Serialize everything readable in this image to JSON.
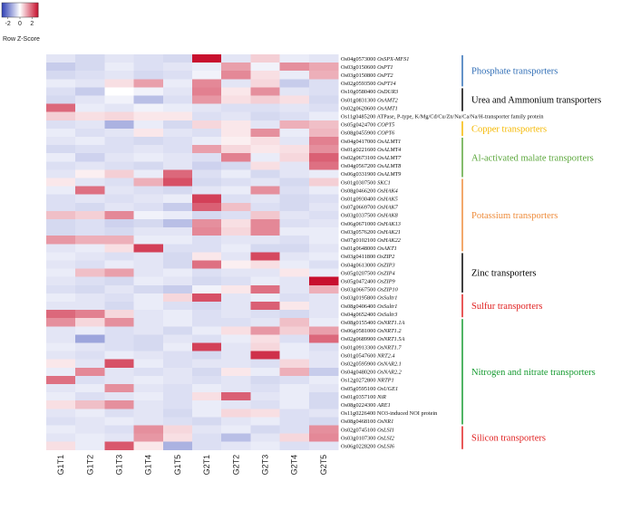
{
  "chart_data": {
    "type": "heatmap",
    "color_key": {
      "title": "Row Z-Score",
      "ticks": [
        "-2",
        "0",
        "2"
      ],
      "low_color": "#2e3fb5",
      "mid_color": "#ffffff",
      "high_color": "#c8102e",
      "range": [
        -3,
        3
      ]
    },
    "columns": [
      "G1T1",
      "G1T2",
      "G1T3",
      "G1T4",
      "G1T5",
      "G2T1",
      "G2T2",
      "G2T3",
      "G2T4",
      "G2T5"
    ],
    "rows": [
      {
        "id": "Os04g0573000",
        "gene": "OsSPX-MFS1",
        "values": [
          -0.4,
          -0.6,
          -0.4,
          -0.5,
          -0.6,
          3.0,
          -0.4,
          0.6,
          -0.3,
          -0.4
        ]
      },
      {
        "id": "Os03g0150600",
        "gene": "OsPT1",
        "values": [
          -0.8,
          -0.6,
          -0.3,
          -0.5,
          -0.4,
          -0.3,
          1.2,
          -0.2,
          1.4,
          1.1
        ]
      },
      {
        "id": "Os03g0150800",
        "gene": "OsPT2",
        "values": [
          -0.6,
          -0.5,
          -0.4,
          -0.6,
          -0.5,
          -0.2,
          1.5,
          0.4,
          -0.3,
          1.0
        ]
      },
      {
        "id": "Os02g0593500",
        "gene": "OsPT14",
        "values": [
          -0.3,
          -0.4,
          0.4,
          1.2,
          -0.3,
          1.5,
          -0.4,
          0.5,
          -0.8,
          -0.5
        ]
      },
      {
        "id": "Os10g0580400",
        "gene": "OsDUR3",
        "values": [
          -0.5,
          -0.8,
          0.0,
          -0.2,
          -0.4,
          1.6,
          0.3,
          1.4,
          -0.4,
          -0.5
        ]
      },
      {
        "id": "Os01g0831300",
        "gene": "OsAMT2",
        "values": [
          -0.6,
          -0.4,
          -0.2,
          -1.0,
          -0.5,
          1.3,
          0.4,
          0.6,
          0.4,
          -0.6
        ]
      },
      {
        "id": "Os02g0620600",
        "gene": "OsAMT1",
        "values": [
          1.9,
          -0.3,
          -0.4,
          -0.2,
          -0.3,
          -0.4,
          -0.5,
          -0.5,
          -0.4,
          -0.5
        ]
      },
      {
        "id": "Os11g0485200",
        "gene": "",
        "description": "ATPase, P-type, K/Mg/Cd/Cu/Zn/Na/Ca/Na/H-transporter family protein",
        "values": [
          0.6,
          0.4,
          0.5,
          0.3,
          0.3,
          -0.5,
          -0.4,
          -0.6,
          -0.5,
          -0.3
        ]
      },
      {
        "id": "Os05g0424700",
        "gene": "COPT5",
        "values": [
          -0.5,
          -0.4,
          -1.2,
          -0.3,
          -0.6,
          0.5,
          0.3,
          -0.4,
          1.0,
          0.8
        ]
      },
      {
        "id": "Os08g0455900",
        "gene": "COPT6",
        "values": [
          -0.3,
          -0.5,
          -0.4,
          0.3,
          -0.4,
          -0.5,
          0.3,
          1.4,
          -0.3,
          0.9
        ]
      },
      {
        "id": "Os04g0417000",
        "gene": "OsALMT1",
        "values": [
          -0.4,
          -0.3,
          -0.5,
          -0.6,
          -0.5,
          -0.3,
          0.2,
          0.4,
          -0.4,
          1.6
        ]
      },
      {
        "id": "Os01g0221600",
        "gene": "OsALMT4",
        "values": [
          -0.6,
          -0.5,
          -0.5,
          -0.4,
          -0.5,
          1.2,
          0.5,
          0.3,
          0.4,
          1.4
        ]
      },
      {
        "id": "Os02g0673100",
        "gene": "OsALMT7",
        "values": [
          -0.3,
          -0.7,
          -0.4,
          -0.3,
          -0.4,
          -0.5,
          1.6,
          -0.3,
          0.5,
          2.0
        ]
      },
      {
        "id": "Os04g0567200",
        "gene": "OsALMT8",
        "values": [
          -0.5,
          -0.4,
          -0.5,
          -0.6,
          -0.4,
          -0.7,
          -0.6,
          0.4,
          -0.4,
          1.8
        ]
      },
      {
        "id": "Os06g0331900",
        "gene": "OsALMT9",
        "values": [
          -0.4,
          0.2,
          0.6,
          -0.3,
          1.9,
          -0.5,
          -0.3,
          -0.6,
          -0.4,
          -0.3
        ]
      },
      {
        "id": "Os01g0307500",
        "gene": "SKC1",
        "values": [
          0.3,
          -0.4,
          -0.5,
          1.0,
          2.2,
          -0.6,
          -0.5,
          -0.4,
          -0.6,
          0.6
        ]
      },
      {
        "id": "Os08g0466200",
        "gene": "OsHAK4",
        "values": [
          -0.3,
          1.8,
          -0.4,
          -0.5,
          -0.6,
          -0.4,
          -0.3,
          1.4,
          -0.5,
          -0.3
        ]
      },
      {
        "id": "Os01g0930400",
        "gene": "OsHAK5",
        "values": [
          -0.5,
          -0.4,
          -0.5,
          -0.4,
          -0.3,
          2.4,
          -0.5,
          -0.4,
          -0.6,
          -0.5
        ]
      },
      {
        "id": "Os07g0669700",
        "gene": "OsHAK7",
        "values": [
          -0.5,
          -0.6,
          -0.4,
          -0.5,
          -0.8,
          2.0,
          0.8,
          -0.5,
          -0.6,
          -0.4
        ]
      },
      {
        "id": "Os03g0337500",
        "gene": "OsHAK8",
        "values": [
          0.8,
          0.6,
          1.5,
          -0.2,
          -0.3,
          -0.6,
          -0.5,
          0.7,
          -0.4,
          -0.5
        ]
      },
      {
        "id": "Os06g0671000",
        "gene": "OsHAK13",
        "values": [
          -0.6,
          -0.5,
          -0.7,
          -0.6,
          -1.0,
          1.4,
          0.4,
          1.5,
          -0.5,
          -0.4
        ]
      },
      {
        "id": "Os03g0576200",
        "gene": "OsHAK21",
        "values": [
          -0.6,
          -0.5,
          -0.6,
          -0.4,
          -0.4,
          1.5,
          0.5,
          1.5,
          -0.3,
          -0.3
        ]
      },
      {
        "id": "Os07g0102100",
        "gene": "OsHAK22",
        "values": [
          1.3,
          1.0,
          1.0,
          -0.3,
          -0.3,
          -0.5,
          -0.4,
          -0.4,
          -0.5,
          -0.3
        ]
      },
      {
        "id": "Os01g0648000",
        "gene": "OsAKT1",
        "values": [
          -0.4,
          -0.3,
          0.4,
          2.4,
          -0.5,
          -0.5,
          -0.3,
          -0.6,
          -0.6,
          -0.4
        ]
      },
      {
        "id": "Os03g0411800",
        "gene": "OsZIP2",
        "values": [
          -0.3,
          -0.4,
          -0.5,
          -0.4,
          -0.6,
          0.3,
          -0.4,
          2.3,
          -0.4,
          -0.3
        ]
      },
      {
        "id": "Os04g0613000",
        "gene": "OsZIP3",
        "values": [
          -0.4,
          -0.5,
          -0.3,
          -0.4,
          -0.6,
          1.8,
          0.2,
          0.4,
          -0.3,
          -0.5
        ]
      },
      {
        "id": "Os05g0207500",
        "gene": "OsZIP4",
        "values": [
          -0.3,
          0.8,
          1.2,
          -0.4,
          -0.3,
          -0.5,
          -0.4,
          -0.4,
          0.3,
          -0.3
        ]
      },
      {
        "id": "Os05g0472400",
        "gene": "OsZIP9",
        "values": [
          -0.4,
          -0.5,
          -0.6,
          -0.3,
          -0.4,
          -0.6,
          -0.5,
          -0.3,
          -0.4,
          3.0
        ]
      },
      {
        "id": "Os03g0667500",
        "gene": "OsZIP10",
        "values": [
          -0.5,
          -0.6,
          -0.4,
          -0.6,
          -0.8,
          -0.2,
          0.3,
          1.8,
          -0.4,
          1.0
        ]
      },
      {
        "id": "Os03g0195800",
        "gene": "OsSultr1",
        "values": [
          -0.3,
          -0.4,
          -0.5,
          -0.3,
          0.5,
          2.2,
          -0.4,
          -0.3,
          -0.5,
          -0.4
        ]
      },
      {
        "id": "Os08g0406400",
        "gene": "OsSultr1",
        "values": [
          -0.4,
          -0.4,
          -0.6,
          -0.3,
          -0.5,
          -0.6,
          -0.4,
          2.0,
          0.3,
          -0.4
        ]
      },
      {
        "id": "Os04g0652400",
        "gene": "OsSultr3",
        "values": [
          1.9,
          1.6,
          0.5,
          -0.4,
          -0.3,
          -0.5,
          -0.4,
          -0.5,
          -0.6,
          -0.4
        ]
      },
      {
        "id": "Os08g0155400",
        "gene": "OsNRT1.1A",
        "values": [
          1.4,
          0.5,
          1.4,
          -0.4,
          -0.3,
          -0.5,
          -0.5,
          -0.4,
          0.8,
          -0.3
        ]
      },
      {
        "id": "Os06g0581000",
        "gene": "OsNRT1.2",
        "values": [
          -0.4,
          -0.3,
          -0.5,
          -0.4,
          -0.6,
          -0.3,
          0.4,
          1.3,
          0.6,
          1.2
        ]
      },
      {
        "id": "Os02g0689900",
        "gene": "OsNRT1.5A",
        "values": [
          -0.4,
          -1.4,
          -0.5,
          -0.6,
          -0.4,
          -0.5,
          -0.3,
          0.4,
          -0.5,
          1.9
        ]
      },
      {
        "id": "Os01g0913300",
        "gene": "OsNRT1.7",
        "values": [
          -0.3,
          -0.4,
          -0.5,
          -0.6,
          -0.3,
          2.4,
          -0.4,
          0.5,
          -0.3,
          -0.5
        ]
      },
      {
        "id": "Os01g0547600",
        "gene": "NRT2.4",
        "values": [
          -0.4,
          -0.5,
          -0.3,
          -0.4,
          -0.5,
          -0.6,
          -0.4,
          2.6,
          -0.3,
          -0.4
        ]
      },
      {
        "id": "Os02g0595900",
        "gene": "OsNAR2.1",
        "values": [
          0.3,
          -0.4,
          2.2,
          -0.3,
          -0.5,
          -0.4,
          -0.4,
          -0.5,
          0.5,
          -0.4
        ]
      },
      {
        "id": "Os04g0480200",
        "gene": "OsNAR2.2",
        "values": [
          -0.3,
          1.5,
          -0.4,
          -0.5,
          -0.4,
          -0.6,
          0.3,
          -0.3,
          1.0,
          -0.8
        ]
      },
      {
        "id": "Os12g0272800",
        "gene": "NRTP1",
        "values": [
          1.8,
          -0.5,
          -0.4,
          -0.3,
          -0.4,
          -0.5,
          -0.4,
          -0.6,
          -0.5,
          -0.3
        ]
      },
      {
        "id": "Os05g0595100",
        "gene": "OsUGE1",
        "values": [
          -0.4,
          -0.3,
          1.4,
          -0.4,
          -0.5,
          -0.3,
          -0.4,
          -0.5,
          -0.3,
          -0.4
        ]
      },
      {
        "id": "Os01g0357100",
        "gene": "NiR",
        "values": [
          -0.3,
          -0.5,
          -0.4,
          -0.3,
          -0.5,
          0.4,
          2.0,
          -0.4,
          -0.3,
          -0.6
        ]
      },
      {
        "id": "Os08g0224300",
        "gene": "ARE1",
        "values": [
          0.4,
          0.8,
          1.4,
          -0.4,
          -0.5,
          -0.3,
          -0.4,
          -0.5,
          -0.3,
          -0.6
        ]
      },
      {
        "id": "Os11g0226400",
        "gene": "",
        "description": "NO3-induced NOI protein",
        "values": [
          -0.4,
          -0.3,
          -0.5,
          -0.4,
          -0.6,
          -0.3,
          0.5,
          0.4,
          -0.5,
          -0.4
        ]
      },
      {
        "id": "Os08g0468100",
        "gene": "OsNR1",
        "values": [
          -0.5,
          -0.4,
          -0.3,
          -0.4,
          -0.5,
          -0.6,
          -0.4,
          -0.3,
          -0.5,
          -0.6
        ]
      },
      {
        "id": "Os02g0745100",
        "gene": "OsLSI1",
        "values": [
          -0.3,
          -0.4,
          -0.5,
          1.4,
          0.5,
          -0.4,
          -0.3,
          -0.6,
          -0.5,
          1.4
        ]
      },
      {
        "id": "Os03g0107300",
        "gene": "OsLSI2",
        "values": [
          -0.4,
          -0.3,
          -0.4,
          1.3,
          0.4,
          -0.5,
          -1.0,
          -0.4,
          0.5,
          1.5
        ]
      },
      {
        "id": "Os06g0228200",
        "gene": "OsLSI6",
        "values": [
          0.4,
          -0.3,
          2.1,
          0.3,
          -1.2,
          -0.5,
          -0.4,
          -0.3,
          -0.5,
          -0.4
        ]
      }
    ],
    "groups": [
      {
        "label": "Phosphate transporters",
        "first_row": 0,
        "last_row": 3,
        "color": "#2f6db5"
      },
      {
        "label": "Urea and Ammonium transporters",
        "first_row": 4,
        "last_row": 6,
        "color": "#000000"
      },
      {
        "label": "Copper transporters",
        "first_row": 8,
        "last_row": 9,
        "color": "#f5b800"
      },
      {
        "label": "Al-activated malate transporters",
        "first_row": 10,
        "last_row": 14,
        "color": "#5aa63a"
      },
      {
        "label": "Potassium transporters",
        "first_row": 15,
        "last_row": 23,
        "color": "#ee8b3a"
      },
      {
        "label": "Zinc transporters",
        "first_row": 24,
        "last_row": 28,
        "color": "#000000"
      },
      {
        "label": "Sulfur transporters",
        "first_row": 29,
        "last_row": 31,
        "color": "#e02020"
      },
      {
        "label": "Nitrogen and nitrate transporters",
        "first_row": 32,
        "last_row": 44,
        "color": "#159a30"
      },
      {
        "label": "Silicon transporters",
        "first_row": 45,
        "last_row": 47,
        "color": "#e02020"
      }
    ]
  }
}
